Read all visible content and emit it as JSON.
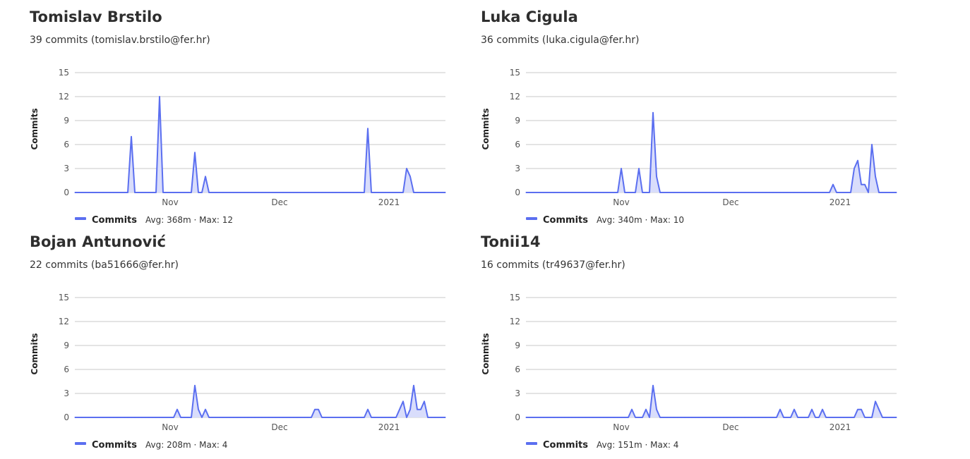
{
  "contributors": [
    {
      "name": "Tomislav Brstilo",
      "summary": "39 commits (tomislav.brstilo@fer.hr)",
      "legend_stats": "Avg: 368m · Max: 12",
      "chart_data": {
        "type": "area",
        "ylabel": "Commits",
        "ylim": [
          0,
          15
        ],
        "yticks": [
          0,
          3,
          6,
          9,
          12,
          15
        ],
        "xticks": [
          {
            "at": 27,
            "label": "Nov"
          },
          {
            "at": 58,
            "label": "Dec"
          },
          {
            "at": 89,
            "label": "2021"
          }
        ],
        "x_range": [
          0,
          105
        ],
        "series": [
          {
            "name": "Commits",
            "values": [
              0,
              0,
              0,
              0,
              0,
              0,
              0,
              0,
              0,
              0,
              0,
              0,
              0,
              0,
              0,
              0,
              7,
              0,
              0,
              0,
              0,
              0,
              0,
              0,
              12,
              0,
              0,
              0,
              0,
              0,
              0,
              0,
              0,
              0,
              5,
              0,
              0,
              2,
              0,
              0,
              0,
              0,
              0,
              0,
              0,
              0,
              0,
              0,
              0,
              0,
              0,
              0,
              0,
              0,
              0,
              0,
              0,
              0,
              0,
              0,
              0,
              0,
              0,
              0,
              0,
              0,
              0,
              0,
              0,
              0,
              0,
              0,
              0,
              0,
              0,
              0,
              0,
              0,
              0,
              0,
              0,
              0,
              0,
              8,
              0,
              0,
              0,
              0,
              0,
              0,
              0,
              0,
              0,
              0,
              3,
              2,
              0,
              0,
              0,
              0,
              0,
              0,
              0,
              0,
              0,
              0
            ]
          }
        ]
      }
    },
    {
      "name": "Luka Cigula",
      "summary": "36 commits (luka.cigula@fer.hr)",
      "legend_stats": "Avg: 340m · Max: 10",
      "chart_data": {
        "type": "area",
        "ylabel": "Commits",
        "ylim": [
          0,
          15
        ],
        "yticks": [
          0,
          3,
          6,
          9,
          12,
          15
        ],
        "xticks": [
          {
            "at": 27,
            "label": "Nov"
          },
          {
            "at": 58,
            "label": "Dec"
          },
          {
            "at": 89,
            "label": "2021"
          }
        ],
        "x_range": [
          0,
          105
        ],
        "series": [
          {
            "name": "Commits",
            "values": [
              0,
              0,
              0,
              0,
              0,
              0,
              0,
              0,
              0,
              0,
              0,
              0,
              0,
              0,
              0,
              0,
              0,
              0,
              0,
              0,
              0,
              0,
              0,
              0,
              0,
              0,
              0,
              3,
              0,
              0,
              0,
              0,
              3,
              0,
              0,
              0,
              10,
              2,
              0,
              0,
              0,
              0,
              0,
              0,
              0,
              0,
              0,
              0,
              0,
              0,
              0,
              0,
              0,
              0,
              0,
              0,
              0,
              0,
              0,
              0,
              0,
              0,
              0,
              0,
              0,
              0,
              0,
              0,
              0,
              0,
              0,
              0,
              0,
              0,
              0,
              0,
              0,
              0,
              0,
              0,
              0,
              0,
              0,
              0,
              0,
              0,
              0,
              1,
              0,
              0,
              0,
              0,
              0,
              3,
              4,
              1,
              1,
              0,
              6,
              2,
              0,
              0,
              0,
              0,
              0,
              0
            ]
          }
        ]
      }
    },
    {
      "name": "Bojan Antunović",
      "summary": "22 commits (ba51666@fer.hr)",
      "legend_stats": "Avg: 208m · Max: 4",
      "chart_data": {
        "type": "area",
        "ylabel": "Commits",
        "ylim": [
          0,
          15
        ],
        "yticks": [
          0,
          3,
          6,
          9,
          12,
          15
        ],
        "xticks": [
          {
            "at": 27,
            "label": "Nov"
          },
          {
            "at": 58,
            "label": "Dec"
          },
          {
            "at": 89,
            "label": "2021"
          }
        ],
        "x_range": [
          0,
          105
        ],
        "series": [
          {
            "name": "Commits",
            "values": [
              0,
              0,
              0,
              0,
              0,
              0,
              0,
              0,
              0,
              0,
              0,
              0,
              0,
              0,
              0,
              0,
              0,
              0,
              0,
              0,
              0,
              0,
              0,
              0,
              0,
              0,
              0,
              0,
              0,
              1,
              0,
              0,
              0,
              0,
              4,
              1,
              0,
              1,
              0,
              0,
              0,
              0,
              0,
              0,
              0,
              0,
              0,
              0,
              0,
              0,
              0,
              0,
              0,
              0,
              0,
              0,
              0,
              0,
              0,
              0,
              0,
              0,
              0,
              0,
              0,
              0,
              0,
              0,
              1,
              1,
              0,
              0,
              0,
              0,
              0,
              0,
              0,
              0,
              0,
              0,
              0,
              0,
              0,
              1,
              0,
              0,
              0,
              0,
              0,
              0,
              0,
              0,
              1,
              2,
              0,
              1,
              4,
              1,
              1,
              2,
              0,
              0,
              0,
              0,
              0,
              0
            ]
          }
        ]
      }
    },
    {
      "name": "Tonii14",
      "summary": "16 commits (tr49637@fer.hr)",
      "legend_stats": "Avg: 151m · Max: 4",
      "chart_data": {
        "type": "area",
        "ylabel": "Commits",
        "ylim": [
          0,
          15
        ],
        "yticks": [
          0,
          3,
          6,
          9,
          12,
          15
        ],
        "xticks": [
          {
            "at": 27,
            "label": "Nov"
          },
          {
            "at": 58,
            "label": "Dec"
          },
          {
            "at": 89,
            "label": "2021"
          }
        ],
        "x_range": [
          0,
          105
        ],
        "series": [
          {
            "name": "Commits",
            "values": [
              0,
              0,
              0,
              0,
              0,
              0,
              0,
              0,
              0,
              0,
              0,
              0,
              0,
              0,
              0,
              0,
              0,
              0,
              0,
              0,
              0,
              0,
              0,
              0,
              0,
              0,
              0,
              0,
              0,
              0,
              1,
              0,
              0,
              0,
              1,
              0,
              4,
              1,
              0,
              0,
              0,
              0,
              0,
              0,
              0,
              0,
              0,
              0,
              0,
              0,
              0,
              0,
              0,
              0,
              0,
              0,
              0,
              0,
              0,
              0,
              0,
              0,
              0,
              0,
              0,
              0,
              0,
              0,
              0,
              0,
              0,
              0,
              1,
              0,
              0,
              0,
              1,
              0,
              0,
              0,
              0,
              1,
              0,
              0,
              1,
              0,
              0,
              0,
              0,
              0,
              0,
              0,
              0,
              0,
              1,
              1,
              0,
              0,
              0,
              2,
              1,
              0,
              0,
              0,
              0,
              0
            ]
          }
        ]
      }
    }
  ],
  "colors": {
    "line": "#5b6ff0",
    "fill": "#d9ddfb",
    "grid": "#c8c8c8",
    "tick_text": "#555555"
  }
}
